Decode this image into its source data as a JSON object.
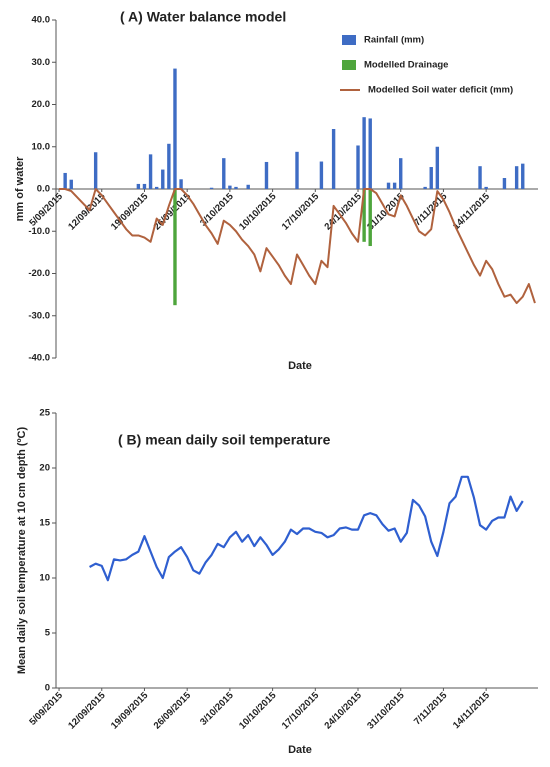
{
  "chart_data": [
    {
      "type": "combo",
      "title": "( A)  Water balance model",
      "x_label": "Date",
      "y_label": "mm of water",
      "categories": [
        "5/09/2015",
        null,
        null,
        null,
        null,
        null,
        null,
        "12/09/2015",
        null,
        null,
        null,
        null,
        null,
        null,
        "19/09/2015",
        null,
        null,
        null,
        null,
        null,
        null,
        "26/09/2015",
        null,
        null,
        null,
        null,
        null,
        null,
        "3/10/2015",
        null,
        null,
        null,
        null,
        null,
        null,
        "10/10/2015",
        null,
        null,
        null,
        null,
        null,
        null,
        "17/10/2015",
        null,
        null,
        null,
        null,
        null,
        null,
        "24/10/2015",
        null,
        null,
        null,
        null,
        null,
        null,
        "31/10/2015",
        null,
        null,
        null,
        null,
        null,
        null,
        "7/11/2015",
        null,
        null,
        null,
        null,
        null,
        null,
        "14/11/2015",
        null,
        null,
        null,
        null,
        null,
        null,
        null,
        null
      ],
      "ylim": [
        -40,
        40
      ],
      "yticks": [
        {
          "value": 40,
          "label": "40.0"
        },
        {
          "value": 30,
          "label": "30.0"
        },
        {
          "value": 20,
          "label": "20.0"
        },
        {
          "value": 10,
          "label": "10.0"
        },
        {
          "value": 0,
          "label": "0.0"
        },
        {
          "value": -10,
          "label": "-10.0"
        },
        {
          "value": -20,
          "label": "-20.0"
        },
        {
          "value": -30,
          "label": "-30.0"
        },
        {
          "value": -40,
          "label": "-40.0"
        }
      ],
      "grid": false,
      "series": [
        {
          "name": "Rainfall (mm)",
          "type": "bar",
          "color": "#3e6cc4",
          "values": [
            0,
            3.8,
            2.2,
            0,
            0,
            0,
            8.7,
            0,
            0,
            0,
            0,
            0,
            0,
            1.2,
            1.2,
            8.2,
            0.5,
            4.6,
            10.7,
            28.5,
            2.3,
            0,
            0,
            0,
            0,
            0.3,
            0,
            7.3,
            0.8,
            0.5,
            0,
            1.0,
            0,
            0,
            6.4,
            0,
            0,
            0,
            0,
            8.8,
            0,
            0,
            0,
            6.5,
            0,
            14.2,
            0,
            0,
            0,
            10.3,
            17.0,
            16.7,
            0,
            0,
            1.5,
            1.5,
            7.3,
            0,
            0,
            0,
            0.5,
            5.2,
            10.0,
            0,
            0,
            0,
            0,
            0,
            0,
            5.4,
            0.5,
            0,
            0,
            2.6,
            0,
            5.4,
            6.0,
            0,
            0
          ]
        },
        {
          "name": "Modelled Drainage",
          "type": "bar",
          "color": "#4ea53c",
          "values": [
            0,
            0,
            0,
            0,
            0,
            0,
            0,
            0,
            0,
            0,
            0,
            0,
            0,
            0,
            0,
            0,
            0,
            0,
            0,
            -27.5,
            0,
            0,
            0,
            0,
            0,
            0,
            0,
            0,
            0,
            0,
            0,
            0,
            0,
            0,
            0,
            0,
            0,
            0,
            0,
            0,
            0,
            0,
            0,
            0,
            0,
            0,
            0,
            0,
            0,
            0,
            -12.5,
            -13.5,
            0,
            0,
            0,
            0,
            0,
            0,
            0,
            0,
            0,
            0,
            0,
            0,
            0,
            0,
            0,
            0,
            0,
            0,
            0,
            0,
            0,
            0,
            0,
            0,
            0,
            0,
            0
          ]
        },
        {
          "name": "Modelled Soil water deficit (mm)",
          "type": "line",
          "color": "#b0623e",
          "values": [
            0,
            0,
            -0.5,
            -2,
            -3.5,
            -5,
            0,
            -1.5,
            -3.5,
            -5.5,
            -7.5,
            -9.5,
            -11,
            -11,
            -11.5,
            -12.5,
            -7,
            -8.5,
            -4,
            0,
            0,
            -1.5,
            -3.5,
            -6,
            -8.5,
            -10.5,
            -13,
            -7.5,
            -8.5,
            -10,
            -12,
            -13.5,
            -15.5,
            -19.5,
            -14,
            -16,
            -18,
            -20.5,
            -22.5,
            -15.5,
            -18,
            -20.5,
            -22.5,
            -17,
            -18.5,
            -4,
            -6,
            -8,
            -10.5,
            -12.5,
            0,
            0,
            -1,
            -3.5,
            -6,
            -6.5,
            -1.5,
            -4,
            -7,
            -10,
            -11,
            -9.5,
            -0.5,
            -2.5,
            -5.5,
            -9,
            -12,
            -15,
            -18,
            -20.5,
            -17,
            -19,
            -22.5,
            -25.5,
            -25,
            -27,
            -25.5,
            -22.5,
            -27
          ]
        }
      ]
    },
    {
      "type": "line",
      "title": "( B)   mean daily soil temperature",
      "x_label": "Date",
      "y_label": "Mean daily soil temperature at 10 cm depth (ºC)",
      "categories": [
        "5/09/2015",
        null,
        null,
        null,
        null,
        null,
        null,
        "12/09/2015",
        null,
        null,
        null,
        null,
        null,
        null,
        "19/09/2015",
        null,
        null,
        null,
        null,
        null,
        null,
        "26/09/2015",
        null,
        null,
        null,
        null,
        null,
        null,
        "3/10/2015",
        null,
        null,
        null,
        null,
        null,
        null,
        "10/10/2015",
        null,
        null,
        null,
        null,
        null,
        null,
        "17/10/2015",
        null,
        null,
        null,
        null,
        null,
        null,
        "24/10/2015",
        null,
        null,
        null,
        null,
        null,
        null,
        "31/10/2015",
        null,
        null,
        null,
        null,
        null,
        null,
        "7/11/2015",
        null,
        null,
        null,
        null,
        null,
        null,
        "14/11/2015",
        null,
        null,
        null,
        null,
        null,
        null,
        null,
        null
      ],
      "ylim": [
        0,
        25
      ],
      "yticks": [
        0,
        5,
        10,
        15,
        20,
        25
      ],
      "grid": false,
      "series": [
        {
          "name": null,
          "type": "line",
          "color": "#2f5fd0",
          "values": [
            null,
            null,
            null,
            null,
            null,
            11.0,
            11.3,
            11.1,
            9.8,
            11.7,
            11.6,
            11.7,
            12.1,
            12.4,
            13.8,
            12.4,
            11.0,
            10.0,
            11.9,
            12.4,
            12.8,
            11.9,
            10.7,
            10.4,
            11.4,
            12.1,
            13.1,
            12.8,
            13.7,
            14.2,
            13.3,
            13.9,
            12.9,
            13.7,
            13.0,
            12.1,
            12.6,
            13.3,
            14.4,
            14.0,
            14.5,
            14.5,
            14.2,
            14.1,
            13.7,
            13.9,
            14.5,
            14.6,
            14.4,
            14.4,
            15.7,
            15.9,
            15.7,
            14.9,
            14.3,
            14.5,
            13.3,
            14.1,
            17.1,
            16.6,
            15.6,
            13.3,
            12.0,
            14.2,
            16.8,
            17.4,
            19.2,
            19.2,
            17.3,
            14.8,
            14.4,
            15.2,
            15.5,
            15.5,
            17.4,
            16.1,
            17.0,
            null,
            null
          ]
        }
      ]
    }
  ]
}
